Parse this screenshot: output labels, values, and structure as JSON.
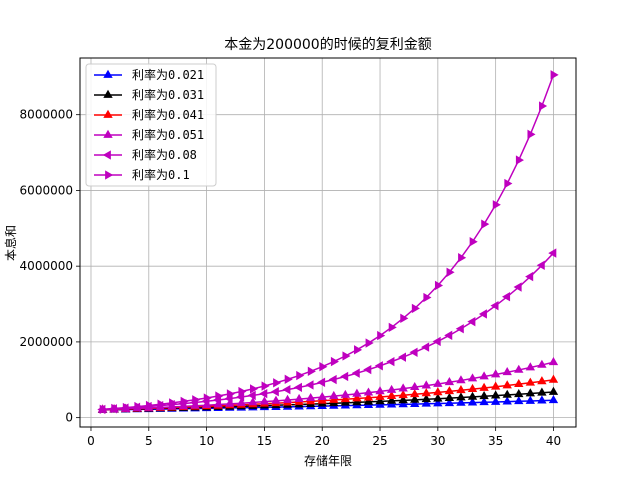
{
  "chart_data": {
    "type": "line",
    "title": "本金为200000的时候的复利金额",
    "xlabel": "存储年限",
    "ylabel": "本息和",
    "principal": 200000,
    "x": [
      1,
      2,
      3,
      4,
      5,
      6,
      7,
      8,
      9,
      10,
      11,
      12,
      13,
      14,
      15,
      16,
      17,
      18,
      19,
      20,
      21,
      22,
      23,
      24,
      25,
      26,
      27,
      28,
      29,
      30,
      31,
      32,
      33,
      34,
      35,
      36,
      37,
      38,
      39,
      40
    ],
    "xlim": [
      -0.95,
      41.95
    ],
    "ylim": [
      -247000,
      9497000
    ],
    "xticks": [
      0,
      5,
      10,
      15,
      20,
      25,
      30,
      35,
      40
    ],
    "xtick_labels": [
      "0",
      "5",
      "10",
      "15",
      "20",
      "25",
      "30",
      "35",
      "40"
    ],
    "yticks": [
      0,
      2000000,
      4000000,
      6000000,
      8000000
    ],
    "ytick_labels": [
      "0",
      "2000000",
      "4000000",
      "6000000",
      "8000000"
    ],
    "grid": true,
    "legend_position": "top-left",
    "series": [
      {
        "name": "利率为0.021",
        "rate": 0.021,
        "color": "#0000ff",
        "marker": "triangle-up"
      },
      {
        "name": "利率为0.031",
        "rate": 0.031,
        "color": "#000000",
        "marker": "triangle-up"
      },
      {
        "name": "利率为0.041",
        "rate": 0.041,
        "color": "#ff0000",
        "marker": "triangle-up"
      },
      {
        "name": "利率为0.051",
        "rate": 0.051,
        "color": "#bf00bf",
        "marker": "triangle-up"
      },
      {
        "name": "利率为0.08",
        "rate": 0.08,
        "color": "#bf00bf",
        "marker": "triangle-left"
      },
      {
        "name": "利率为0.1",
        "rate": 0.1,
        "color": "#bf00bf",
        "marker": "triangle-right"
      }
    ]
  }
}
